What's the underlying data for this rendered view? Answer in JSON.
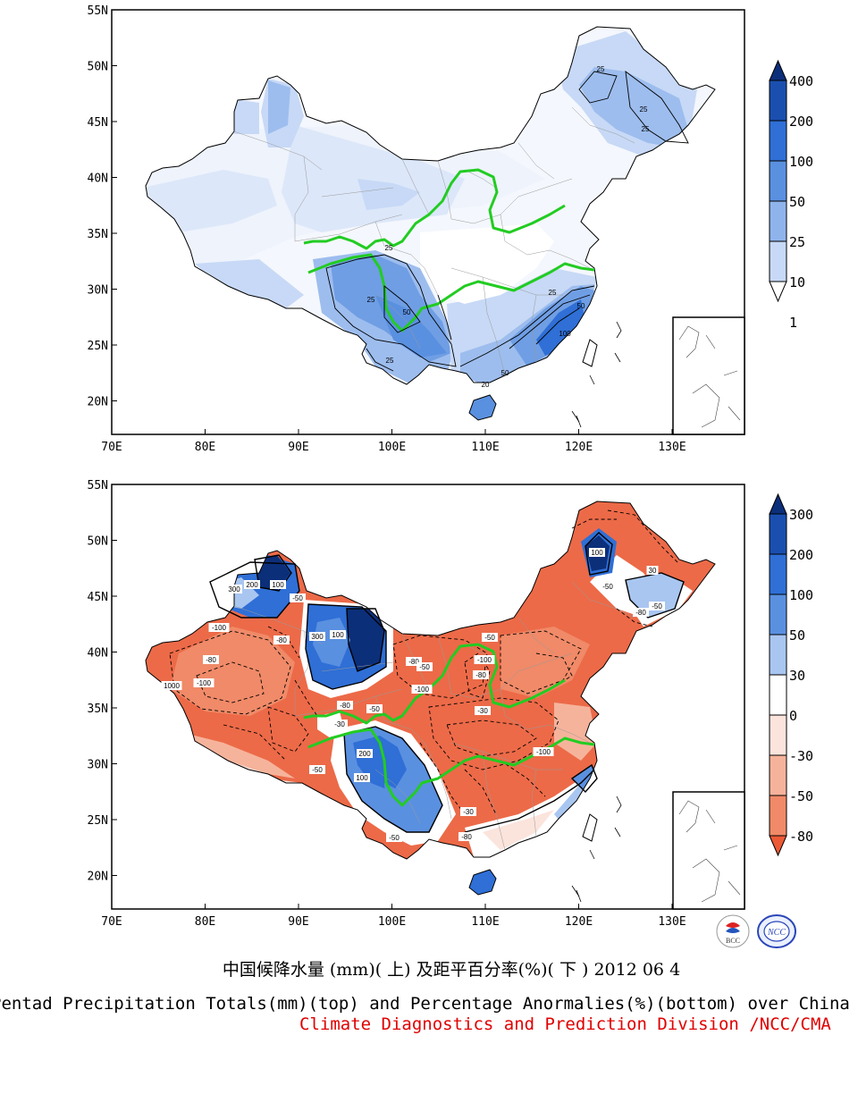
{
  "maps": [
    {
      "id": "precip",
      "lat_ticks": [
        "55N",
        "50N",
        "45N",
        "40N",
        "35N",
        "30N",
        "25N",
        "20N"
      ],
      "lon_ticks": [
        "70E",
        "80E",
        "90E",
        "100E",
        "110E",
        "120E",
        "130E"
      ],
      "colorbar": {
        "labels": [
          "400",
          "200",
          "100",
          "50",
          "25",
          "10",
          "1"
        ],
        "colors": [
          "#0c2f7a",
          "#1a4fb0",
          "#2f6fd6",
          "#5a90e0",
          "#8fb4ec",
          "#c7d9f6",
          "#ffffff"
        ]
      },
      "contour_labels": [
        "25",
        "25",
        "25",
        "50",
        "25",
        "25",
        "50",
        "100",
        "50",
        "25",
        "20",
        "25"
      ],
      "regions": [
        {
          "name": "tibet-southwest",
          "value": 25
        },
        {
          "name": "southeast-coast",
          "value": 100
        },
        {
          "name": "northeast",
          "value": 25
        },
        {
          "name": "xinjiang-north",
          "value": 10
        }
      ]
    },
    {
      "id": "anomaly",
      "lat_ticks": [
        "55N",
        "50N",
        "45N",
        "40N",
        "35N",
        "30N",
        "25N",
        "20N"
      ],
      "lon_ticks": [
        "70E",
        "80E",
        "90E",
        "100E",
        "110E",
        "120E",
        "130E"
      ],
      "colorbar": {
        "labels": [
          "300",
          "200",
          "100",
          "50",
          "30",
          "0",
          "-30",
          "-50",
          "-80"
        ],
        "colors": [
          "#0c2f7a",
          "#1a4fb0",
          "#2f6fd6",
          "#5a90e0",
          "#a9c6f1",
          "#ffffff",
          "#fbe4dc",
          "#f6b39b",
          "#f08a68",
          "#ec5a36"
        ]
      },
      "contour_labels": [
        "300",
        "200",
        "100",
        "-50",
        "-100",
        "-80",
        "1000",
        "-100",
        "-80",
        "300",
        "100",
        "-50",
        "-30",
        "-80",
        "200",
        "100",
        "-50",
        "-80",
        "-100",
        "-50",
        "-80",
        "-100",
        "-50",
        "-30",
        "100",
        "-50",
        "30",
        "-50",
        "-80",
        "-100",
        "-80",
        "-30",
        "-50"
      ]
    }
  ],
  "captions": {
    "zh": "中国候降水量 (mm)( 上) 及距平百分率(%)( 下 ) 2012 06 4",
    "en": "Pentad Precipitation Totals(mm)(top) and Percentage Anormalies(%)(bottom) over China",
    "division": "Climate Diagnostics and Prediction Division /NCC/CMA"
  },
  "logos": {
    "left": "BCC",
    "right": "NCC"
  }
}
